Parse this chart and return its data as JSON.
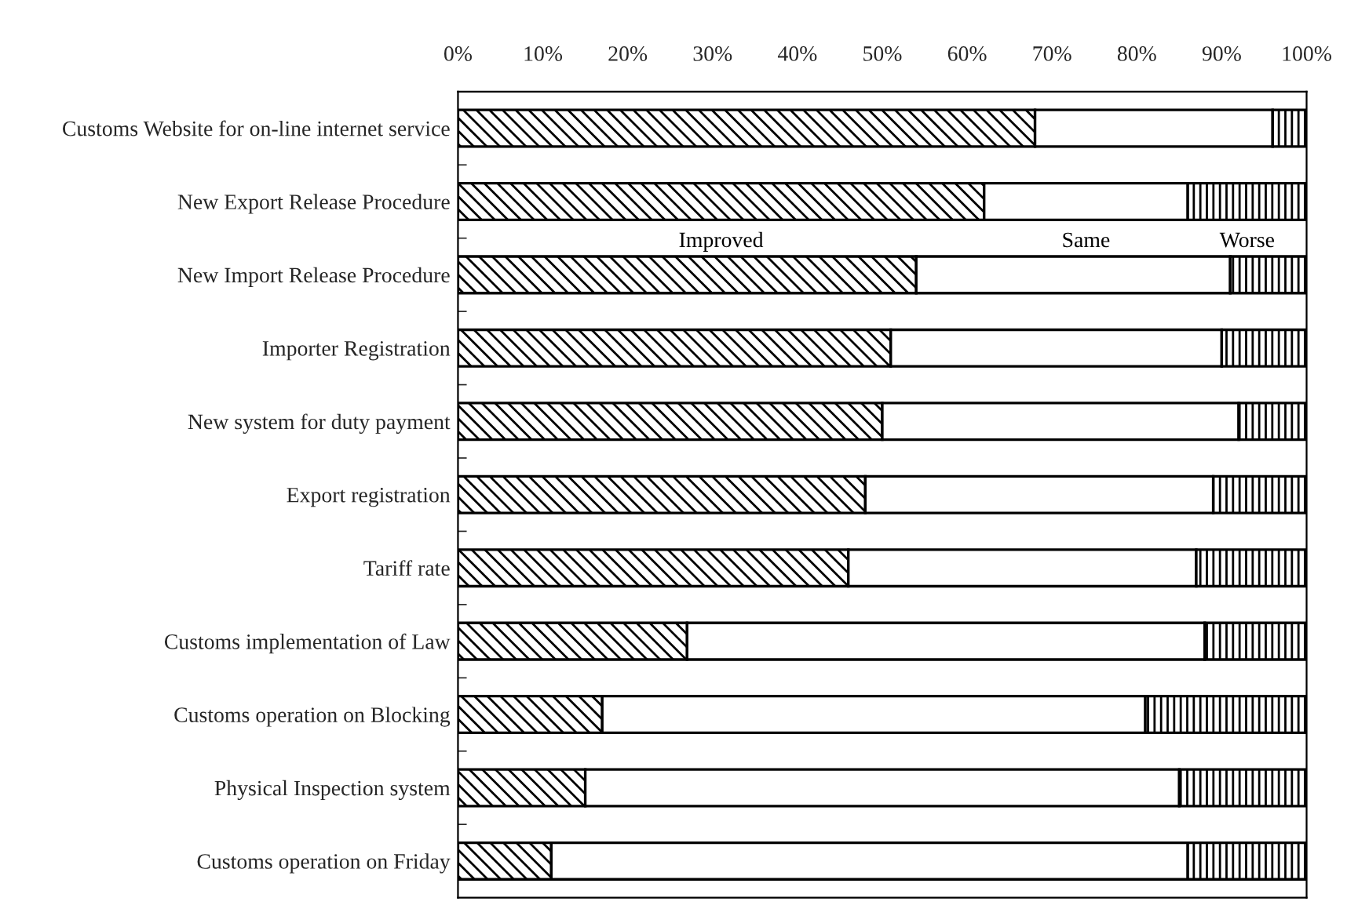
{
  "chart_data": {
    "type": "bar",
    "orientation": "horizontal",
    "stacked": true,
    "categories": [
      "Customs Website for on-line internet service",
      "New Export Release Procedure",
      "New Import Release Procedure",
      "Importer Registration",
      "New system for duty payment",
      "Export registration",
      "Tariff rate",
      "Customs implementation of Law",
      "Customs operation on Blocking",
      "Physical Inspection system",
      "Customs operation on Friday"
    ],
    "series": [
      {
        "name": "Improved",
        "color": "#000000",
        "values": [
          68,
          62,
          54,
          51,
          50,
          48,
          46,
          27,
          17,
          15,
          11
        ]
      },
      {
        "name": "Same",
        "color": "#ffffff",
        "values": [
          28,
          24,
          37,
          39,
          42,
          41,
          41,
          61,
          64,
          70,
          75
        ]
      },
      {
        "name": "Worse",
        "color": "#000000",
        "values": [
          4,
          14,
          9,
          10,
          8,
          11,
          13,
          12,
          19,
          15,
          14
        ]
      }
    ],
    "xlim": [
      0,
      100
    ],
    "xticks": [
      {
        "value": 0,
        "label": "0%"
      },
      {
        "value": 10,
        "label": "10%"
      },
      {
        "value": 20,
        "label": "20%"
      },
      {
        "value": 30,
        "label": "30%"
      },
      {
        "value": 40,
        "label": "40%"
      },
      {
        "value": 50,
        "label": "50%"
      },
      {
        "value": 60,
        "label": "60%"
      },
      {
        "value": 70,
        "label": "70%"
      },
      {
        "value": 80,
        "label": "80%"
      },
      {
        "value": 90,
        "label": "90%"
      },
      {
        "value": 100,
        "label": "100%"
      }
    ],
    "grid": false,
    "legend": false
  }
}
